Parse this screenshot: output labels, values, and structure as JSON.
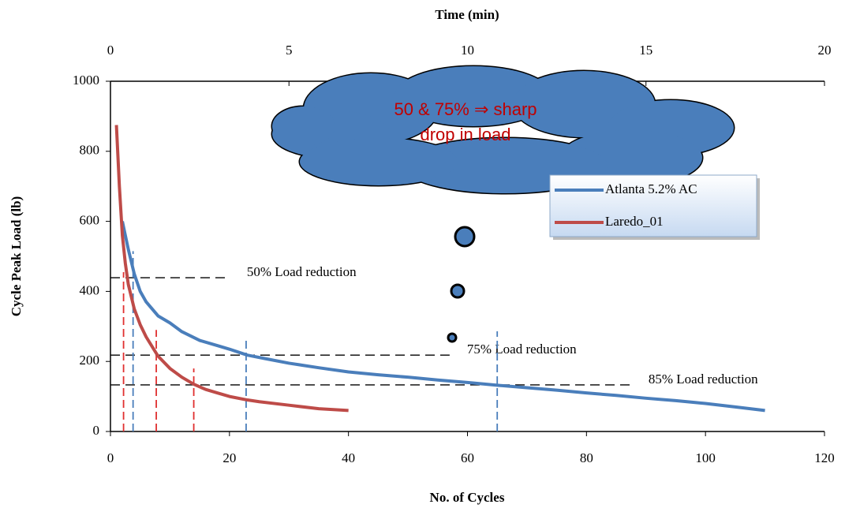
{
  "chart_data": {
    "type": "line",
    "x2label": "Time (min)",
    "xlabel": "No. of Cycles",
    "ylabel": "Cycle Peak Load (lb)",
    "xlim": [
      0,
      120
    ],
    "xticks": [
      0,
      20,
      40,
      60,
      80,
      100,
      120
    ],
    "x2lim": [
      0,
      20
    ],
    "x2ticks": [
      0,
      5,
      10,
      15,
      20
    ],
    "ylim": [
      0,
      1000
    ],
    "yticks": [
      0,
      200,
      400,
      600,
      800,
      1000
    ],
    "legend": "upper right",
    "series": [
      {
        "name": "Atlanta 5.2% AC",
        "color": "#4a7ebb",
        "x": [
          2,
          2.5,
          3,
          4,
          5,
          6,
          8,
          10,
          12,
          15,
          18,
          20,
          23,
          26,
          30,
          35,
          40,
          45,
          50,
          55,
          60,
          65,
          70,
          75,
          80,
          85,
          90,
          95,
          100,
          105,
          110
        ],
        "values": [
          600,
          560,
          520,
          450,
          400,
          370,
          330,
          310,
          285,
          260,
          245,
          235,
          218,
          208,
          195,
          182,
          170,
          162,
          155,
          147,
          140,
          132,
          125,
          118,
          110,
          103,
          95,
          88,
          80,
          70,
          60
        ]
      },
      {
        "name": "Laredo_01",
        "color": "#be4b48",
        "x": [
          1,
          1.5,
          2,
          2.5,
          3,
          4,
          5,
          6,
          8,
          10,
          12,
          14,
          16,
          18,
          20,
          23,
          25,
          30,
          35,
          40
        ],
        "values": [
          875,
          700,
          560,
          480,
          420,
          350,
          305,
          270,
          215,
          180,
          155,
          135,
          120,
          110,
          100,
          90,
          85,
          75,
          65,
          60
        ]
      }
    ],
    "reference_lines": {
      "horizontal": [
        {
          "y": 439,
          "x_end": 20,
          "label": "50% Load reduction"
        },
        {
          "y": 218,
          "x_end": 57,
          "label": "75% Load reduction"
        },
        {
          "y": 133,
          "x_end": 87.5,
          "label": "85% Load reduction"
        }
      ],
      "vertical": [
        {
          "x": 2.2,
          "y_end": 455,
          "color": "#e03030"
        },
        {
          "x": 7.7,
          "y_end": 290,
          "color": "#e03030"
        },
        {
          "x": 14,
          "y_end": 180,
          "color": "#e03030"
        },
        {
          "x": 3.8,
          "y_end": 515,
          "color": "#4a7ebb"
        },
        {
          "x": 22.8,
          "y_end": 263,
          "color": "#4a7ebb"
        },
        {
          "x": 65,
          "y_end": 286,
          "color": "#4a7ebb"
        }
      ]
    },
    "callout": {
      "lines": [
        "50 & 75% ⇒ sharp",
        "drop in load"
      ]
    }
  }
}
